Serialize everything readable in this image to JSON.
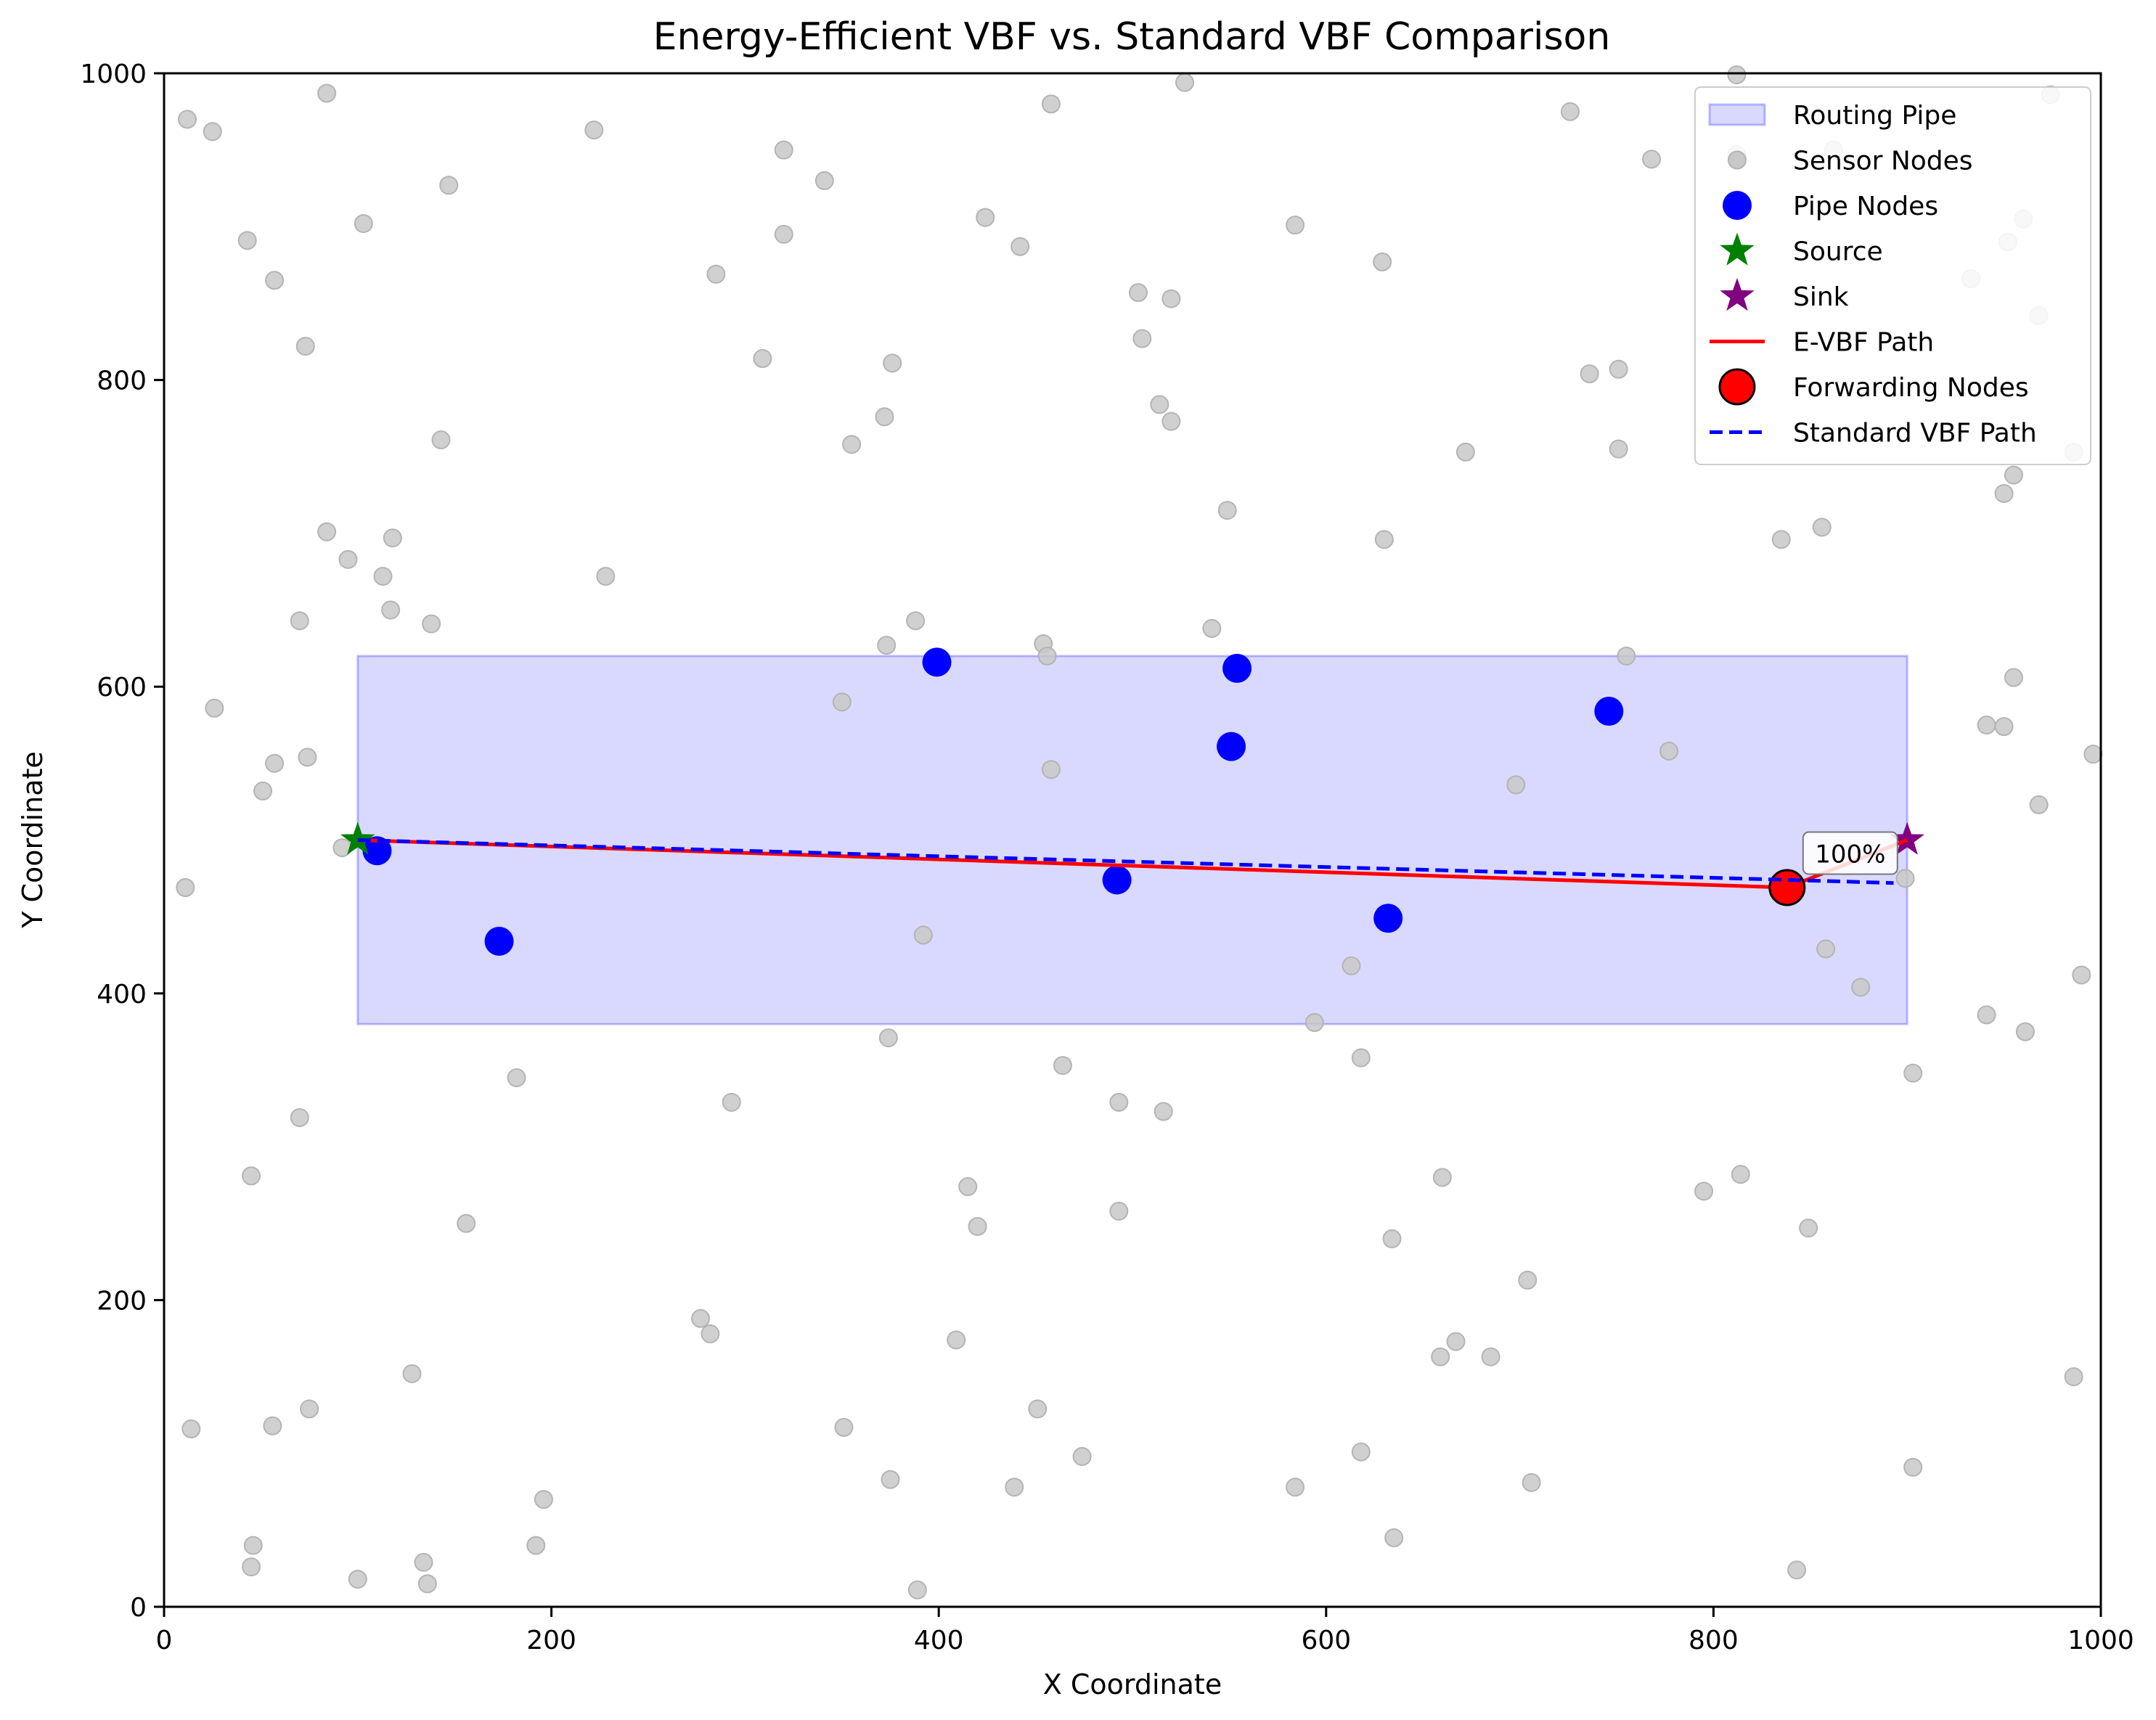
{
  "chart_data": {
    "type": "scatter",
    "title": "Energy-Efficient VBF vs. Standard VBF Comparison",
    "xlabel": "X Coordinate",
    "ylabel": "Y Coordinate",
    "xlim": [
      0,
      1000
    ],
    "ylim": [
      0,
      1000
    ],
    "xticks": [
      0,
      200,
      400,
      600,
      800,
      1000
    ],
    "yticks": [
      0,
      200,
      400,
      600,
      800,
      1000
    ],
    "grid": false,
    "legend_position": "top-right",
    "legend": [
      {
        "label": "Routing Pipe",
        "kind": "patch"
      },
      {
        "label": "Sensor Nodes",
        "kind": "sensor"
      },
      {
        "label": "Pipe Nodes",
        "kind": "pipe"
      },
      {
        "label": "Source",
        "kind": "source"
      },
      {
        "label": "Sink",
        "kind": "sink"
      },
      {
        "label": "E-VBF Path",
        "kind": "evbf"
      },
      {
        "label": "Forwarding Nodes",
        "kind": "forward"
      },
      {
        "label": "Standard VBF Path",
        "kind": "vbf"
      }
    ],
    "colors": {
      "pipe_fill": "#0000ff",
      "sensor": "#c8c8c8",
      "pipe_nodes": "#0000ff",
      "source": "#008000",
      "sink": "#800080",
      "evbf": "#ff0000",
      "vbf": "#0000ff"
    },
    "routing_pipe": {
      "x0": 100,
      "x1": 900,
      "y0": 380,
      "y1": 620
    },
    "sensor_nodes": [
      [
        12,
        970
      ],
      [
        25,
        962
      ],
      [
        84,
        987
      ],
      [
        222,
        963
      ],
      [
        320,
        950
      ],
      [
        341,
        930
      ],
      [
        147,
        927
      ],
      [
        43,
        891
      ],
      [
        103,
        902
      ],
      [
        57,
        865
      ],
      [
        320,
        895
      ],
      [
        285,
        869
      ],
      [
        424,
        906
      ],
      [
        442,
        887
      ],
      [
        458,
        980
      ],
      [
        527,
        994
      ],
      [
        726,
        975
      ],
      [
        812,
        999
      ],
      [
        812,
        947
      ],
      [
        768,
        944
      ],
      [
        584,
        901
      ],
      [
        629,
        877
      ],
      [
        503,
        857
      ],
      [
        520,
        853
      ],
      [
        505,
        827
      ],
      [
        73,
        822
      ],
      [
        309,
        814
      ],
      [
        376,
        811
      ],
      [
        736,
        804
      ],
      [
        751,
        807
      ],
      [
        514,
        784
      ],
      [
        520,
        773
      ],
      [
        372,
        776
      ],
      [
        355,
        758
      ],
      [
        143,
        761
      ],
      [
        672,
        753
      ],
      [
        751,
        755
      ],
      [
        84,
        701
      ],
      [
        95,
        683
      ],
      [
        118,
        697
      ],
      [
        113,
        672
      ],
      [
        228,
        672
      ],
      [
        549,
        715
      ],
      [
        630,
        696
      ],
      [
        835,
        696
      ],
      [
        856,
        704
      ],
      [
        70,
        643
      ],
      [
        117,
        650
      ],
      [
        138,
        641
      ],
      [
        388,
        643
      ],
      [
        373,
        627
      ],
      [
        454,
        628
      ],
      [
        456,
        620
      ],
      [
        541,
        638
      ],
      [
        755,
        620
      ],
      [
        26,
        586
      ],
      [
        350,
        590
      ],
      [
        57,
        550
      ],
      [
        74,
        554
      ],
      [
        51,
        532
      ],
      [
        458,
        546
      ],
      [
        698,
        536
      ],
      [
        777,
        558
      ],
      [
        92,
        495
      ],
      [
        11,
        469
      ],
      [
        392,
        438
      ],
      [
        613,
        418
      ],
      [
        858,
        429
      ],
      [
        876,
        404
      ],
      [
        899,
        475
      ],
      [
        594,
        381
      ],
      [
        374,
        371
      ],
      [
        464,
        353
      ],
      [
        618,
        358
      ],
      [
        182,
        345
      ],
      [
        293,
        329
      ],
      [
        493,
        329
      ],
      [
        516,
        323
      ],
      [
        70,
        319
      ],
      [
        45,
        281
      ],
      [
        415,
        274
      ],
      [
        420,
        248
      ],
      [
        493,
        258
      ],
      [
        660,
        280
      ],
      [
        634,
        240
      ],
      [
        156,
        250
      ],
      [
        795,
        271
      ],
      [
        814,
        282
      ],
      [
        849,
        247
      ],
      [
        277,
        188
      ],
      [
        282,
        178
      ],
      [
        409,
        174
      ],
      [
        667,
        173
      ],
      [
        659,
        163
      ],
      [
        685,
        163
      ],
      [
        704,
        213
      ],
      [
        128,
        152
      ],
      [
        14,
        116
      ],
      [
        56,
        118
      ],
      [
        75,
        129
      ],
      [
        351,
        117
      ],
      [
        451,
        129
      ],
      [
        474,
        98
      ],
      [
        618,
        101
      ],
      [
        375,
        83
      ],
      [
        439,
        78
      ],
      [
        584,
        78
      ],
      [
        706,
        81
      ],
      [
        196,
        70
      ],
      [
        46,
        40
      ],
      [
        45,
        26
      ],
      [
        192,
        40
      ],
      [
        134,
        29
      ],
      [
        136,
        15
      ],
      [
        100,
        18
      ],
      [
        389,
        11
      ],
      [
        635,
        45
      ],
      [
        843,
        24
      ],
      [
        903,
        91
      ],
      [
        903,
        348
      ],
      [
        941,
        386
      ],
      [
        961,
        375
      ],
      [
        968,
        523
      ],
      [
        941,
        575
      ],
      [
        950,
        574
      ],
      [
        955,
        606
      ],
      [
        950,
        726
      ],
      [
        955,
        738
      ],
      [
        986,
        753
      ],
      [
        952,
        890
      ],
      [
        933,
        866
      ],
      [
        960,
        905
      ],
      [
        974,
        986
      ],
      [
        968,
        842
      ],
      [
        996,
        556
      ],
      [
        990,
        412
      ],
      [
        986,
        150
      ],
      [
        862,
        950
      ]
    ],
    "pipe_nodes": [
      [
        110,
        493
      ],
      [
        173,
        434
      ],
      [
        399,
        616
      ],
      [
        492,
        474
      ],
      [
        551,
        561
      ],
      [
        554,
        612
      ],
      [
        632,
        449
      ],
      [
        746,
        584
      ]
    ],
    "source": [
      100,
      500
    ],
    "sink": [
      900,
      500
    ],
    "evbf_path": {
      "x": [
        100,
        838,
        900
      ],
      "y": [
        500,
        469,
        500
      ]
    },
    "forwarding_nodes": [
      [
        838,
        469
      ]
    ],
    "vbf_path": {
      "x": [
        100,
        838,
        893
      ],
      "y": [
        500,
        474,
        472
      ]
    },
    "annotation": {
      "text": "100%",
      "x": 850,
      "y": 491
    }
  }
}
